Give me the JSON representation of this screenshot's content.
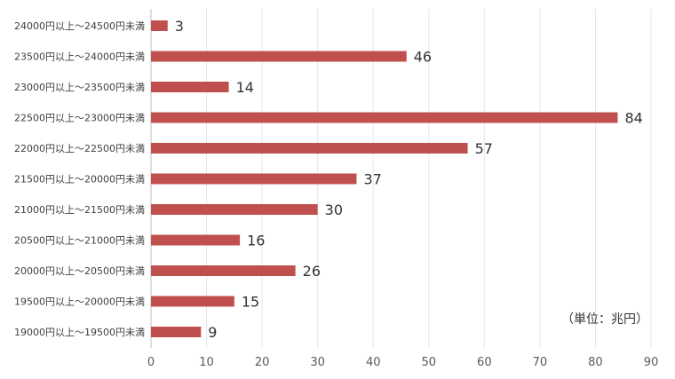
{
  "chart_data": {
    "type": "bar",
    "orientation": "horizontal",
    "categories": [
      "24000円以上～24500円未満",
      "23500円以上～24000円未満",
      "23000円以上～23500円未満",
      "22500円以上～23000円未満",
      "22000円以上～22500円未満",
      "21500円以上～20000円未満",
      "21000円以上～21500円未満",
      "20500円以上～21000円未満",
      "20000円以上～20500円未満",
      "19500円以上～20000円未満",
      "19000円以上～19500円未満"
    ],
    "values": [
      3,
      46,
      14,
      84,
      57,
      37,
      30,
      16,
      26,
      15,
      9
    ],
    "data_labels": [
      "3",
      "46",
      "14",
      "84",
      "57",
      "37",
      "30",
      "16",
      "26",
      "15",
      "9"
    ],
    "xlim": [
      0,
      90
    ],
    "xticks": [
      "0",
      "10",
      "20",
      "30",
      "40",
      "50",
      "60",
      "70",
      "80",
      "90"
    ],
    "grid": true,
    "bar_color": "#c0504d",
    "unit_note": "（単位：兆円）"
  }
}
